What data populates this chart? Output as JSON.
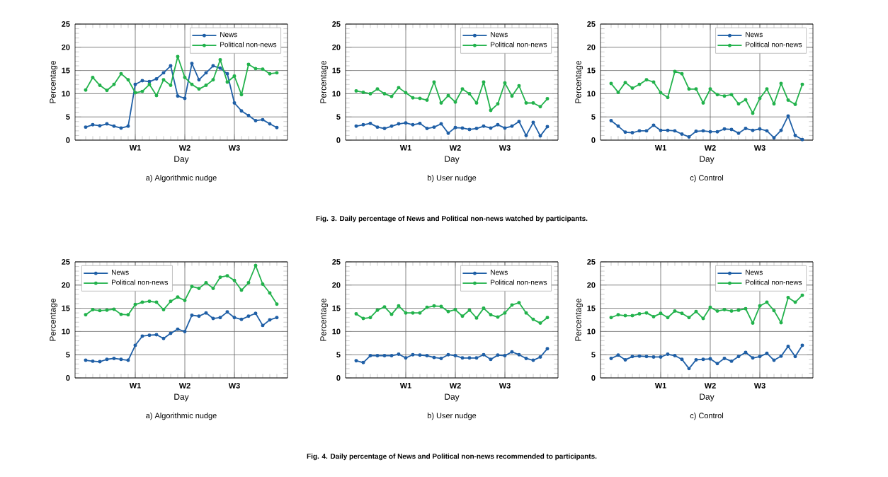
{
  "chart_data": [
    {
      "type": "line",
      "title": "a) Algorithmic nudge",
      "xlabel": "Day",
      "ylabel": "Percentage",
      "categories": [
        null,
        null,
        null,
        null,
        null,
        null,
        null,
        "W1",
        null,
        null,
        null,
        null,
        null,
        null,
        "W2",
        null,
        null,
        null,
        null,
        null,
        null,
        "W3",
        null,
        null,
        null,
        null,
        null,
        null
      ],
      "ylim": [
        0,
        25
      ],
      "yticks": [
        0,
        5,
        10,
        15,
        20,
        25
      ],
      "grid": true,
      "legend": "top right",
      "marker": "circle",
      "series": [
        {
          "name": "News",
          "color": "#1f5fa6",
          "values": [
            2.8,
            3.3,
            3.1,
            3.5,
            3.0,
            2.6,
            3.0,
            12.0,
            12.8,
            12.6,
            13.2,
            14.5,
            16.0,
            9.5,
            9.0,
            16.5,
            13.0,
            14.5,
            16.0,
            15.5,
            14.3,
            8.0,
            6.3,
            5.3,
            4.2,
            4.4,
            3.5,
            2.7
          ]
        },
        {
          "name": "Political non-news",
          "color": "#22b24c",
          "values": [
            10.8,
            13.5,
            11.8,
            10.7,
            12.0,
            14.3,
            13.0,
            10.2,
            10.5,
            12.0,
            9.6,
            13.0,
            11.8,
            18.0,
            13.5,
            12.0,
            11.0,
            11.8,
            13.0,
            17.3,
            12.5,
            13.8,
            9.8,
            16.3,
            15.4,
            15.3,
            14.3,
            14.5
          ]
        }
      ]
    },
    {
      "type": "line",
      "title": "b) User nudge",
      "xlabel": "Day",
      "ylabel": "Percentage",
      "annotations": [
        "Fig. 3. Daily percentage of News and Political non-news watched by participants."
      ],
      "categories": [
        null,
        null,
        null,
        null,
        null,
        null,
        null,
        "W1",
        null,
        null,
        null,
        null,
        null,
        null,
        "W2",
        null,
        null,
        null,
        null,
        null,
        null,
        "W3",
        null,
        null,
        null,
        null,
        null,
        null
      ],
      "ylim": [
        0,
        25
      ],
      "yticks": [
        0,
        5,
        10,
        15,
        20,
        25
      ],
      "grid": true,
      "legend": "top right",
      "marker": "circle",
      "series": [
        {
          "name": "News",
          "color": "#1f5fa6",
          "values": [
            3.0,
            3.3,
            3.6,
            2.8,
            2.5,
            3.0,
            3.5,
            3.7,
            3.3,
            3.6,
            2.5,
            2.8,
            3.5,
            1.5,
            2.7,
            2.6,
            2.3,
            2.5,
            3.0,
            2.6,
            3.3,
            2.6,
            3.0,
            4.0,
            1.0,
            3.8,
            0.9,
            2.9
          ]
        },
        {
          "name": "Political non-news",
          "color": "#22b24c",
          "values": [
            10.6,
            10.3,
            10.0,
            11.0,
            10.0,
            9.4,
            11.3,
            10.2,
            9.1,
            9.0,
            8.6,
            12.5,
            8.0,
            9.6,
            8.2,
            11.0,
            10.0,
            8.0,
            12.5,
            6.4,
            7.8,
            12.3,
            9.5,
            11.7,
            8.0,
            8.0,
            7.2,
            8.9
          ]
        }
      ]
    },
    {
      "type": "line",
      "title": "c) Control",
      "xlabel": "Day",
      "ylabel": "Percentage",
      "categories": [
        null,
        null,
        null,
        null,
        null,
        null,
        null,
        "W1",
        null,
        null,
        null,
        null,
        null,
        null,
        "W2",
        null,
        null,
        null,
        null,
        null,
        null,
        "W3",
        null,
        null,
        null,
        null,
        null,
        null
      ],
      "ylim": [
        0,
        25
      ],
      "yticks": [
        0,
        5,
        10,
        15,
        20,
        25
      ],
      "grid": true,
      "legend": "top right",
      "marker": "circle",
      "series": [
        {
          "name": "News",
          "color": "#1f5fa6",
          "values": [
            4.2,
            3.0,
            1.7,
            1.6,
            2.0,
            2.0,
            3.2,
            2.1,
            2.1,
            2.0,
            1.3,
            0.7,
            1.9,
            2.0,
            1.8,
            1.8,
            2.4,
            2.3,
            1.5,
            2.5,
            2.1,
            2.4,
            2.0,
            0.5,
            2.1,
            5.2,
            1.0,
            0.1
          ]
        },
        {
          "name": "Political non-news",
          "color": "#22b24c",
          "values": [
            12.2,
            10.3,
            12.4,
            11.2,
            12.0,
            13.0,
            12.5,
            10.2,
            9.2,
            14.8,
            14.3,
            11.0,
            11.0,
            8.0,
            11.0,
            9.8,
            9.5,
            9.8,
            7.8,
            8.7,
            5.8,
            9.0,
            11.0,
            7.8,
            12.2,
            8.6,
            7.7,
            12.0
          ]
        }
      ]
    },
    {
      "type": "line",
      "title": "a) Algorithmic nudge",
      "xlabel": "Day",
      "ylabel": "Percentage",
      "categories": [
        null,
        null,
        null,
        null,
        null,
        null,
        null,
        "W1",
        null,
        null,
        null,
        null,
        null,
        null,
        "W2",
        null,
        null,
        null,
        null,
        null,
        null,
        "W3",
        null,
        null,
        null,
        null,
        null,
        null
      ],
      "ylim": [
        0,
        25
      ],
      "yticks": [
        0,
        5,
        10,
        15,
        20,
        25
      ],
      "grid": true,
      "legend": "top left",
      "marker": "circle",
      "series": [
        {
          "name": "News",
          "color": "#1f5fa6",
          "values": [
            3.8,
            3.6,
            3.5,
            4.0,
            4.2,
            4.0,
            3.8,
            7.0,
            9.0,
            9.2,
            9.3,
            8.5,
            9.6,
            10.5,
            10.0,
            13.5,
            13.3,
            14.0,
            12.8,
            13.0,
            14.2,
            13.0,
            12.6,
            13.3,
            13.9,
            11.3,
            12.5,
            13.0
          ]
        },
        {
          "name": "Political non-news",
          "color": "#22b24c",
          "values": [
            13.6,
            14.7,
            14.5,
            14.6,
            14.8,
            13.7,
            13.6,
            15.8,
            16.3,
            16.5,
            16.3,
            14.7,
            16.5,
            17.4,
            16.7,
            19.7,
            19.3,
            20.5,
            19.3,
            21.7,
            22.0,
            21.0,
            18.9,
            20.5,
            24.2,
            20.2,
            18.3,
            15.9
          ]
        }
      ]
    },
    {
      "type": "line",
      "title": "b) User nudge",
      "xlabel": "Day",
      "ylabel": "Percentage",
      "annotations": [
        "Fig. 4. Daily percentage of News and Political non-news recommended to participants."
      ],
      "categories": [
        null,
        null,
        null,
        null,
        null,
        null,
        null,
        "W1",
        null,
        null,
        null,
        null,
        null,
        null,
        "W2",
        null,
        null,
        null,
        null,
        null,
        null,
        "W3",
        null,
        null,
        null,
        null,
        null,
        null
      ],
      "ylim": [
        0,
        25
      ],
      "yticks": [
        0,
        5,
        10,
        15,
        20,
        25
      ],
      "grid": true,
      "legend": "top right",
      "marker": "circle",
      "series": [
        {
          "name": "News",
          "color": "#1f5fa6",
          "values": [
            3.7,
            3.3,
            4.8,
            4.8,
            4.8,
            4.8,
            5.1,
            4.3,
            5.0,
            4.9,
            4.8,
            4.4,
            4.2,
            5.0,
            4.8,
            4.3,
            4.3,
            4.3,
            5.0,
            4.0,
            4.9,
            4.8,
            5.6,
            5.0,
            4.2,
            3.8,
            4.5,
            6.3
          ]
        },
        {
          "name": "Political non-news",
          "color": "#22b24c",
          "values": [
            13.8,
            12.8,
            13.0,
            14.6,
            15.3,
            13.7,
            15.5,
            14.0,
            14.0,
            14.0,
            15.2,
            15.5,
            15.4,
            14.3,
            14.7,
            13.3,
            14.6,
            12.9,
            15.0,
            13.6,
            13.1,
            14.0,
            15.7,
            16.2,
            14.0,
            12.6,
            11.8,
            13.0
          ]
        }
      ]
    },
    {
      "type": "line",
      "title": "c) Control",
      "xlabel": "Day",
      "ylabel": "Percentage",
      "categories": [
        null,
        null,
        null,
        null,
        null,
        null,
        null,
        "W1",
        null,
        null,
        null,
        null,
        null,
        null,
        "W2",
        null,
        null,
        null,
        null,
        null,
        null,
        "W3",
        null,
        null,
        null,
        null,
        null,
        null
      ],
      "ylim": [
        0,
        25
      ],
      "yticks": [
        0,
        5,
        10,
        15,
        20,
        25
      ],
      "grid": true,
      "legend": "top right",
      "marker": "circle",
      "series": [
        {
          "name": "News",
          "color": "#1f5fa6",
          "values": [
            4.2,
            4.9,
            3.9,
            4.6,
            4.7,
            4.6,
            4.5,
            4.5,
            5.1,
            4.8,
            4.0,
            2.0,
            3.9,
            4.0,
            4.1,
            3.1,
            4.2,
            3.6,
            4.6,
            5.5,
            4.3,
            4.6,
            5.3,
            3.8,
            4.7,
            6.8,
            4.6,
            7.0
          ]
        },
        {
          "name": "Political non-news",
          "color": "#22b24c",
          "values": [
            13.0,
            13.6,
            13.4,
            13.4,
            13.8,
            14.0,
            13.2,
            13.9,
            13.0,
            14.4,
            13.9,
            13.0,
            14.3,
            12.8,
            15.2,
            14.4,
            14.7,
            14.4,
            14.6,
            14.9,
            11.8,
            15.5,
            16.3,
            14.5,
            11.9,
            17.3,
            16.3,
            17.8
          ]
        }
      ]
    }
  ]
}
